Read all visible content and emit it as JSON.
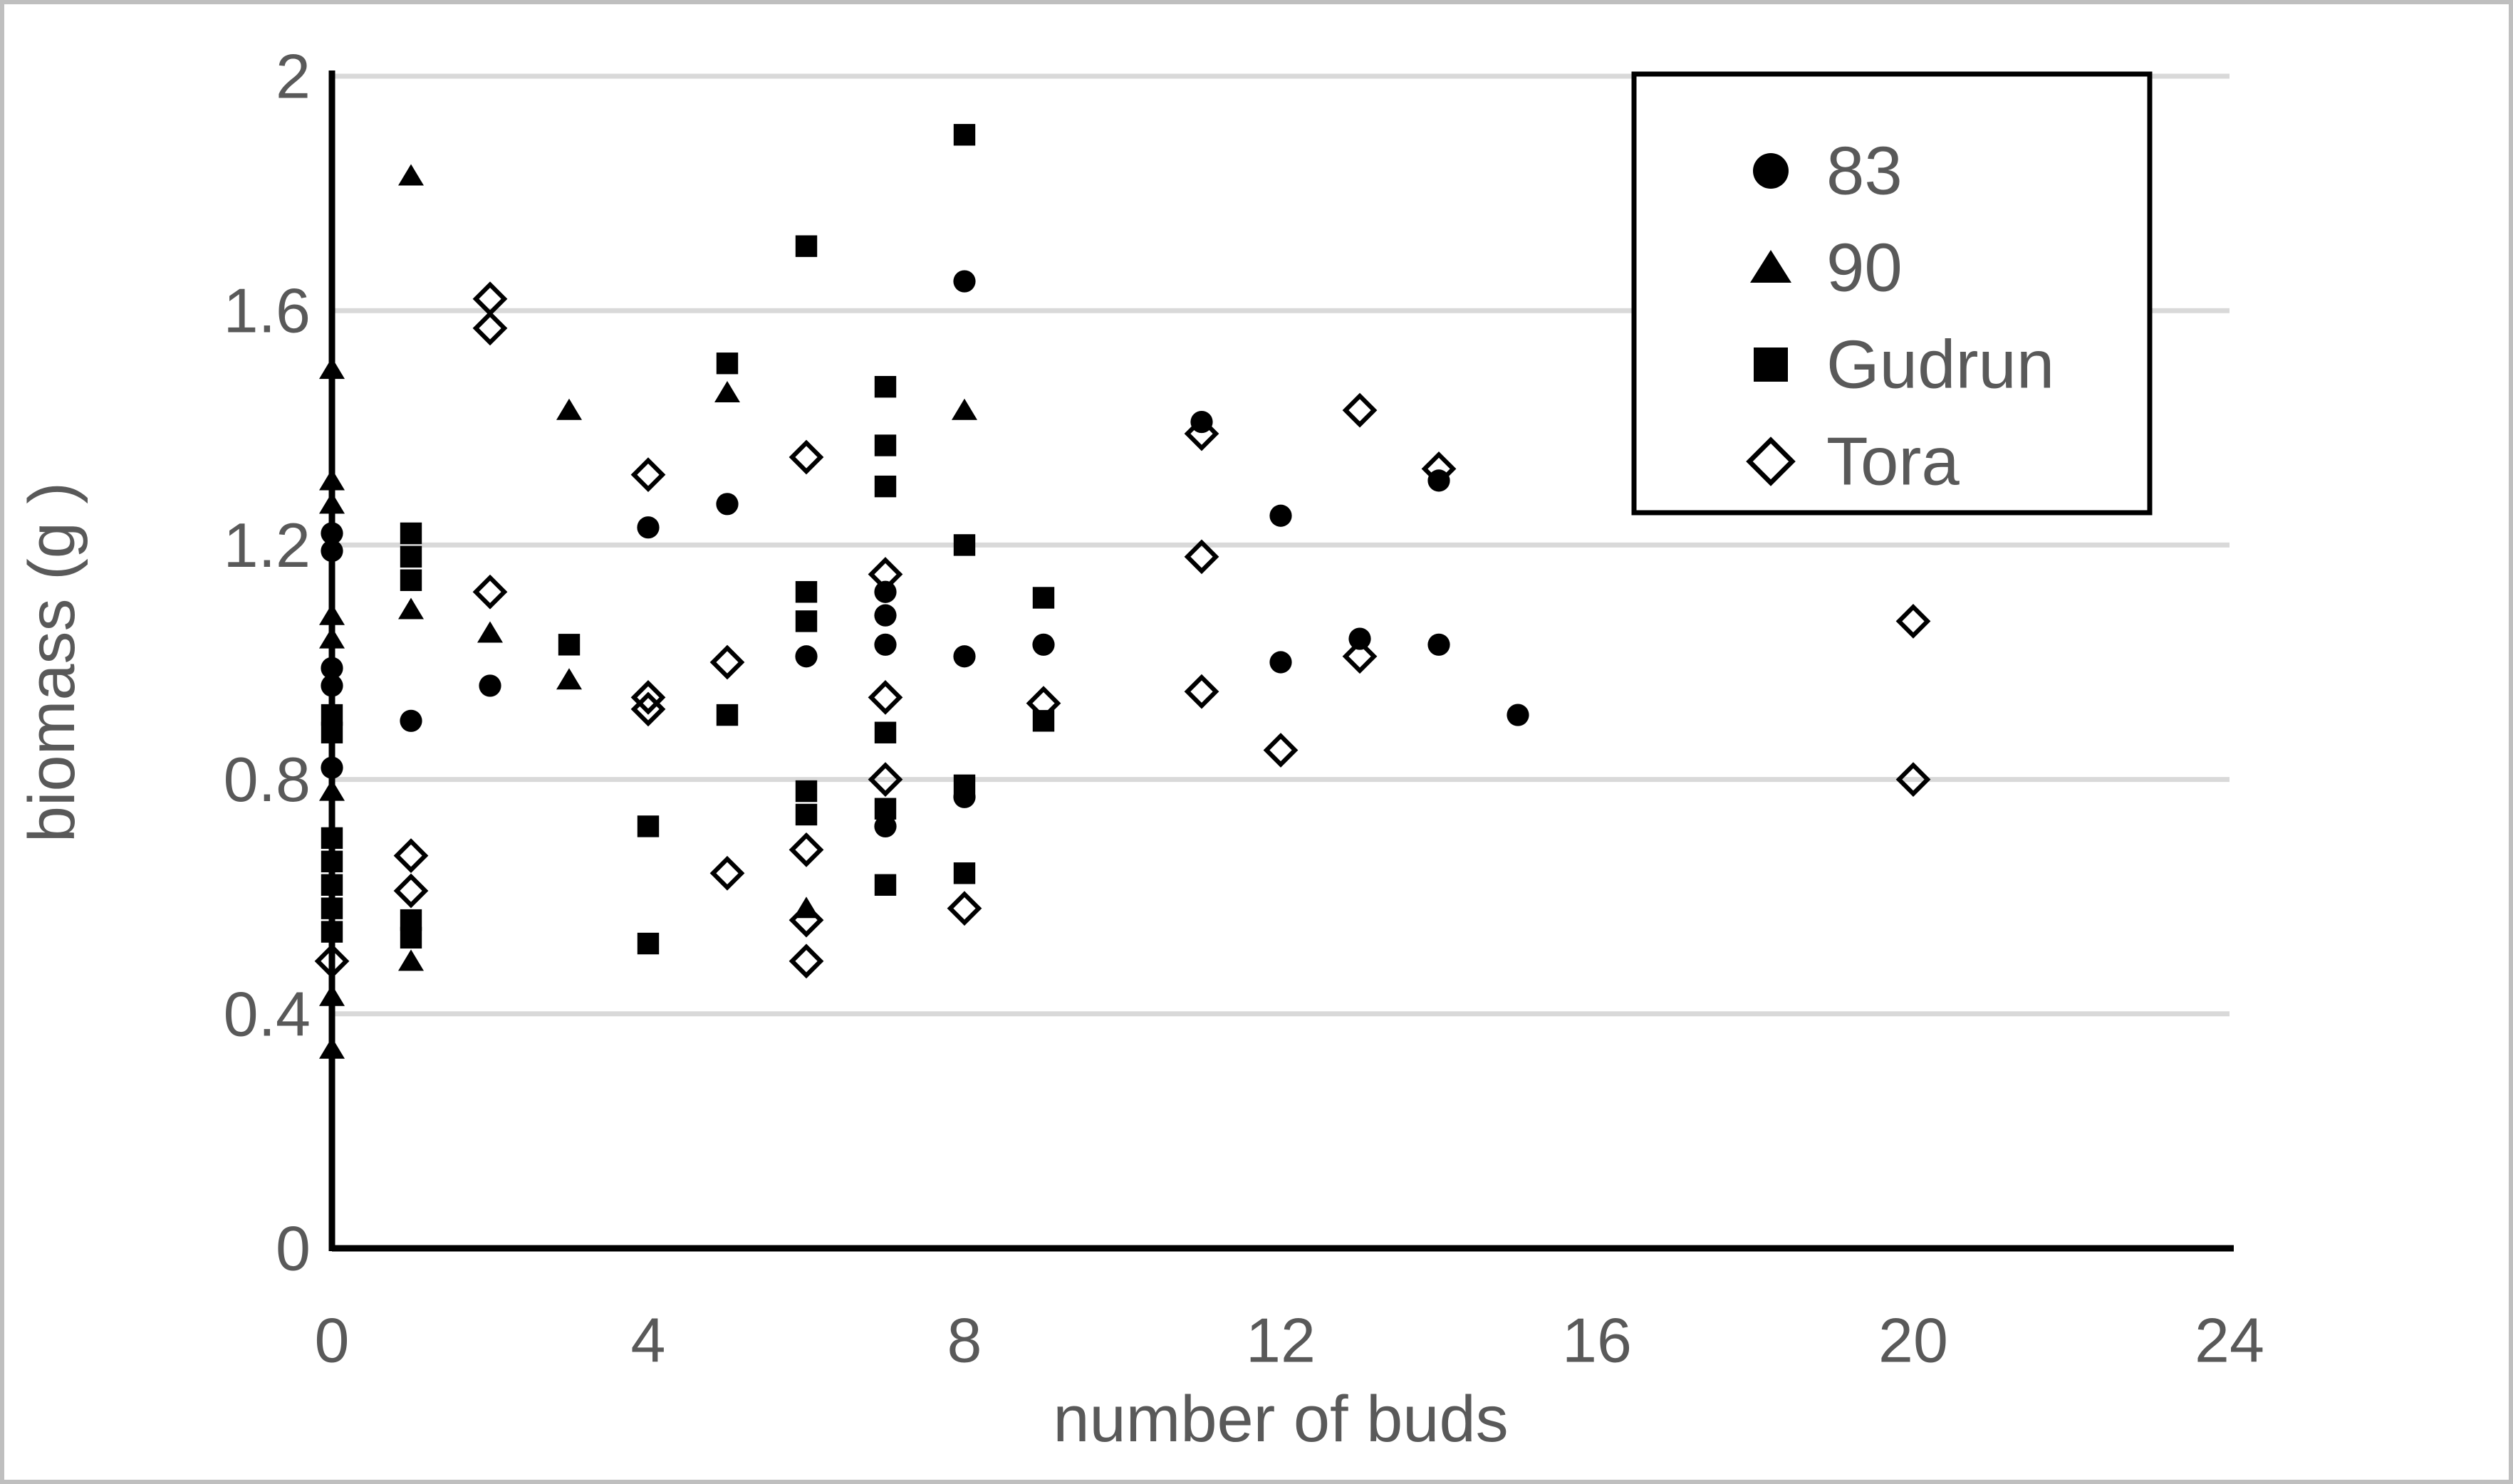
{
  "figure": {
    "background": "#ffffff",
    "frame_color": "#bfbfbf"
  },
  "chart_data": {
    "type": "scatter",
    "title": "",
    "xlabel": "number of buds",
    "ylabel": "biomass (g )",
    "xlim": [
      0,
      24
    ],
    "ylim": [
      0,
      2
    ],
    "x_ticks": [
      0,
      4,
      8,
      12,
      16,
      20,
      24
    ],
    "x_tick_labels": [
      "0",
      "4",
      "8",
      "12",
      "16",
      "20",
      "24"
    ],
    "y_ticks": [
      0,
      0.4,
      0.8,
      1.2,
      1.6,
      2
    ],
    "y_tick_labels": [
      "0",
      "0.4",
      "0.8",
      "1.2",
      "1.6",
      "2"
    ],
    "grid": "horizontal-only",
    "gridline_values": [
      0.4,
      0.8,
      1.2,
      1.6,
      2.0
    ],
    "legend_position": "top-right",
    "colors": {
      "marker": "#000000",
      "axis": "#000000",
      "tick_text": "#595959",
      "gridline": "#d9d9d9",
      "legend_border": "#000000",
      "figure_border": "#bfbfbf"
    },
    "series": [
      {
        "name": "83",
        "marker": "circle",
        "filled": true,
        "points": [
          [
            0,
            1.22
          ],
          [
            0,
            1.19
          ],
          [
            0,
            0.99
          ],
          [
            0,
            0.96
          ],
          [
            0,
            0.82
          ],
          [
            1,
            0.9
          ],
          [
            2,
            0.96
          ],
          [
            4,
            1.23
          ],
          [
            5,
            1.27
          ],
          [
            6,
            1.01
          ],
          [
            7,
            1.12
          ],
          [
            7,
            1.08
          ],
          [
            7,
            1.03
          ],
          [
            7,
            0.72
          ],
          [
            8,
            1.65
          ],
          [
            8,
            1.01
          ],
          [
            8,
            0.77
          ],
          [
            9,
            1.03
          ],
          [
            11,
            1.41
          ],
          [
            12,
            1.25
          ],
          [
            12,
            1.0
          ],
          [
            13,
            1.04
          ],
          [
            14,
            1.31
          ],
          [
            14,
            1.03
          ],
          [
            15,
            0.91
          ]
        ]
      },
      {
        "name": "90",
        "marker": "triangle",
        "filled": true,
        "points": [
          [
            0,
            1.5
          ],
          [
            0,
            1.31
          ],
          [
            0,
            1.27
          ],
          [
            0,
            1.08
          ],
          [
            0,
            1.04
          ],
          [
            0,
            0.78
          ],
          [
            0,
            0.43
          ],
          [
            0,
            0.34
          ],
          [
            1,
            1.83
          ],
          [
            1,
            1.09
          ],
          [
            1,
            0.49
          ],
          [
            2,
            1.05
          ],
          [
            3,
            1.43
          ],
          [
            3,
            0.97
          ],
          [
            5,
            1.46
          ],
          [
            6,
            0.58
          ],
          [
            8,
            1.43
          ]
        ]
      },
      {
        "name": "Gudrun",
        "marker": "square",
        "filled": true,
        "points": [
          [
            0,
            0.91
          ],
          [
            0,
            0.88
          ],
          [
            0,
            0.7
          ],
          [
            0,
            0.66
          ],
          [
            0,
            0.62
          ],
          [
            0,
            0.58
          ],
          [
            0,
            0.54
          ],
          [
            1,
            1.22
          ],
          [
            1,
            1.18
          ],
          [
            1,
            1.14
          ],
          [
            1,
            0.56
          ],
          [
            1,
            0.53
          ],
          [
            3,
            1.03
          ],
          [
            4,
            0.72
          ],
          [
            4,
            0.52
          ],
          [
            5,
            1.51
          ],
          [
            5,
            0.91
          ],
          [
            6,
            1.71
          ],
          [
            6,
            1.12
          ],
          [
            6,
            1.07
          ],
          [
            6,
            0.78
          ],
          [
            6,
            0.74
          ],
          [
            7,
            1.47
          ],
          [
            7,
            1.37
          ],
          [
            7,
            1.3
          ],
          [
            7,
            0.88
          ],
          [
            7,
            0.75
          ],
          [
            7,
            0.62
          ],
          [
            8,
            1.9
          ],
          [
            8,
            1.2
          ],
          [
            8,
            0.79
          ],
          [
            8,
            0.64
          ],
          [
            9,
            1.11
          ],
          [
            9,
            0.9
          ]
        ]
      },
      {
        "name": "Tora",
        "marker": "diamond",
        "filled": false,
        "points": [
          [
            0,
            0.49
          ],
          [
            1,
            0.67
          ],
          [
            1,
            0.61
          ],
          [
            2,
            1.62
          ],
          [
            2,
            1.57
          ],
          [
            2,
            1.12
          ],
          [
            4,
            1.32
          ],
          [
            4,
            0.94
          ],
          [
            4,
            0.92
          ],
          [
            5,
            1.0
          ],
          [
            5,
            0.64
          ],
          [
            6,
            1.35
          ],
          [
            6,
            0.68
          ],
          [
            6,
            0.56
          ],
          [
            6,
            0.49
          ],
          [
            7,
            1.15
          ],
          [
            7,
            0.94
          ],
          [
            7,
            0.8
          ],
          [
            8,
            0.58
          ],
          [
            9,
            0.93
          ],
          [
            11,
            1.39
          ],
          [
            11,
            1.18
          ],
          [
            11,
            0.95
          ],
          [
            12,
            0.85
          ],
          [
            13,
            1.43
          ],
          [
            13,
            1.01
          ],
          [
            14,
            1.33
          ],
          [
            20,
            1.07
          ],
          [
            20,
            0.8
          ]
        ]
      }
    ]
  }
}
